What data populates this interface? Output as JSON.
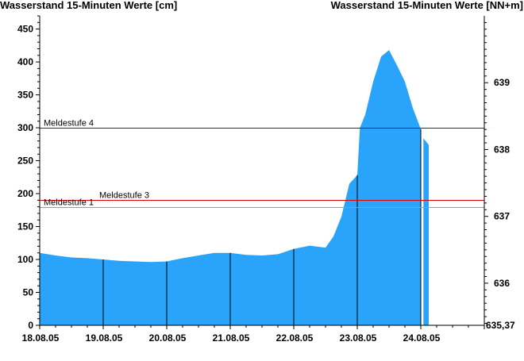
{
  "chart_data": {
    "type": "area",
    "title_left": "Wasserstand 15-Minuten Werte [cm]",
    "title_right": "Wasserstand 15-Minuten Werte [NN+m]",
    "x_unit": "days",
    "xlim": [
      "18.08.05 00:00",
      "25.08.05 00:00"
    ],
    "x_tick_labels": [
      "18.08.05",
      "19.08.05",
      "20.08.05",
      "21.08.05",
      "22.08.05",
      "23.08.05",
      "24.08.05"
    ],
    "ylim": [
      0,
      470
    ],
    "y_ticks": [
      0,
      50,
      100,
      150,
      200,
      250,
      300,
      350,
      400,
      450
    ],
    "y2lim": [
      635.37,
      640.0
    ],
    "y2_ticks": [
      636,
      637,
      638,
      639
    ],
    "y2_tick_labels": [
      "636",
      "637",
      "638",
      "639"
    ],
    "y2_min_label": "635,37",
    "grid": false,
    "series": [
      {
        "color": "#2aa4fa",
        "x": [
          "18.08.05 00:00",
          "18.08.05 06:00",
          "18.08.05 12:00",
          "18.08.05 18:00",
          "19.08.05 00:00",
          "19.08.05 06:00",
          "19.08.05 12:00",
          "19.08.05 18:00",
          "20.08.05 00:00",
          "20.08.05 06:00",
          "20.08.05 12:00",
          "20.08.05 18:00",
          "21.08.05 00:00",
          "21.08.05 06:00",
          "21.08.05 12:00",
          "21.08.05 18:00",
          "22.08.05 00:00",
          "22.08.05 06:00",
          "22.08.05 12:00",
          "22.08.05 15:00",
          "22.08.05 18:00",
          "22.08.05 21:00",
          "23.08.05 00:00",
          "23.08.05 01:00",
          "23.08.05 03:00",
          "23.08.05 06:00",
          "23.08.05 09:00",
          "23.08.05 12:00",
          "23.08.05 15:00",
          "23.08.05 18:00",
          "23.08.05 21:00",
          "24.08.05 00:00"
        ],
        "y": [
          110,
          106,
          103,
          102,
          100,
          98,
          97,
          96,
          97,
          102,
          106,
          110,
          110,
          107,
          106,
          108,
          116,
          121,
          118,
          135,
          165,
          215,
          228,
          300,
          320,
          370,
          408,
          418,
          395,
          370,
          330,
          298
        ]
      },
      {
        "color": "#2aa4fa",
        "x": [
          "24.08.05 01:00",
          "24.08.05 03:00"
        ],
        "y": [
          284,
          274
        ]
      }
    ],
    "day_separator_lines": [
      "19.08.05",
      "20.08.05",
      "21.08.05",
      "22.08.05",
      "23.08.05",
      "24.08.05"
    ],
    "reference_lines": [
      {
        "label": "Meldestufe 4",
        "value": 300,
        "color": "#800060"
      },
      {
        "label": "Meldestufe 3",
        "value": 190,
        "color": "#e00000"
      },
      {
        "label": "Meldestufe 1",
        "value": 180,
        "color": "#c8a000"
      }
    ]
  }
}
